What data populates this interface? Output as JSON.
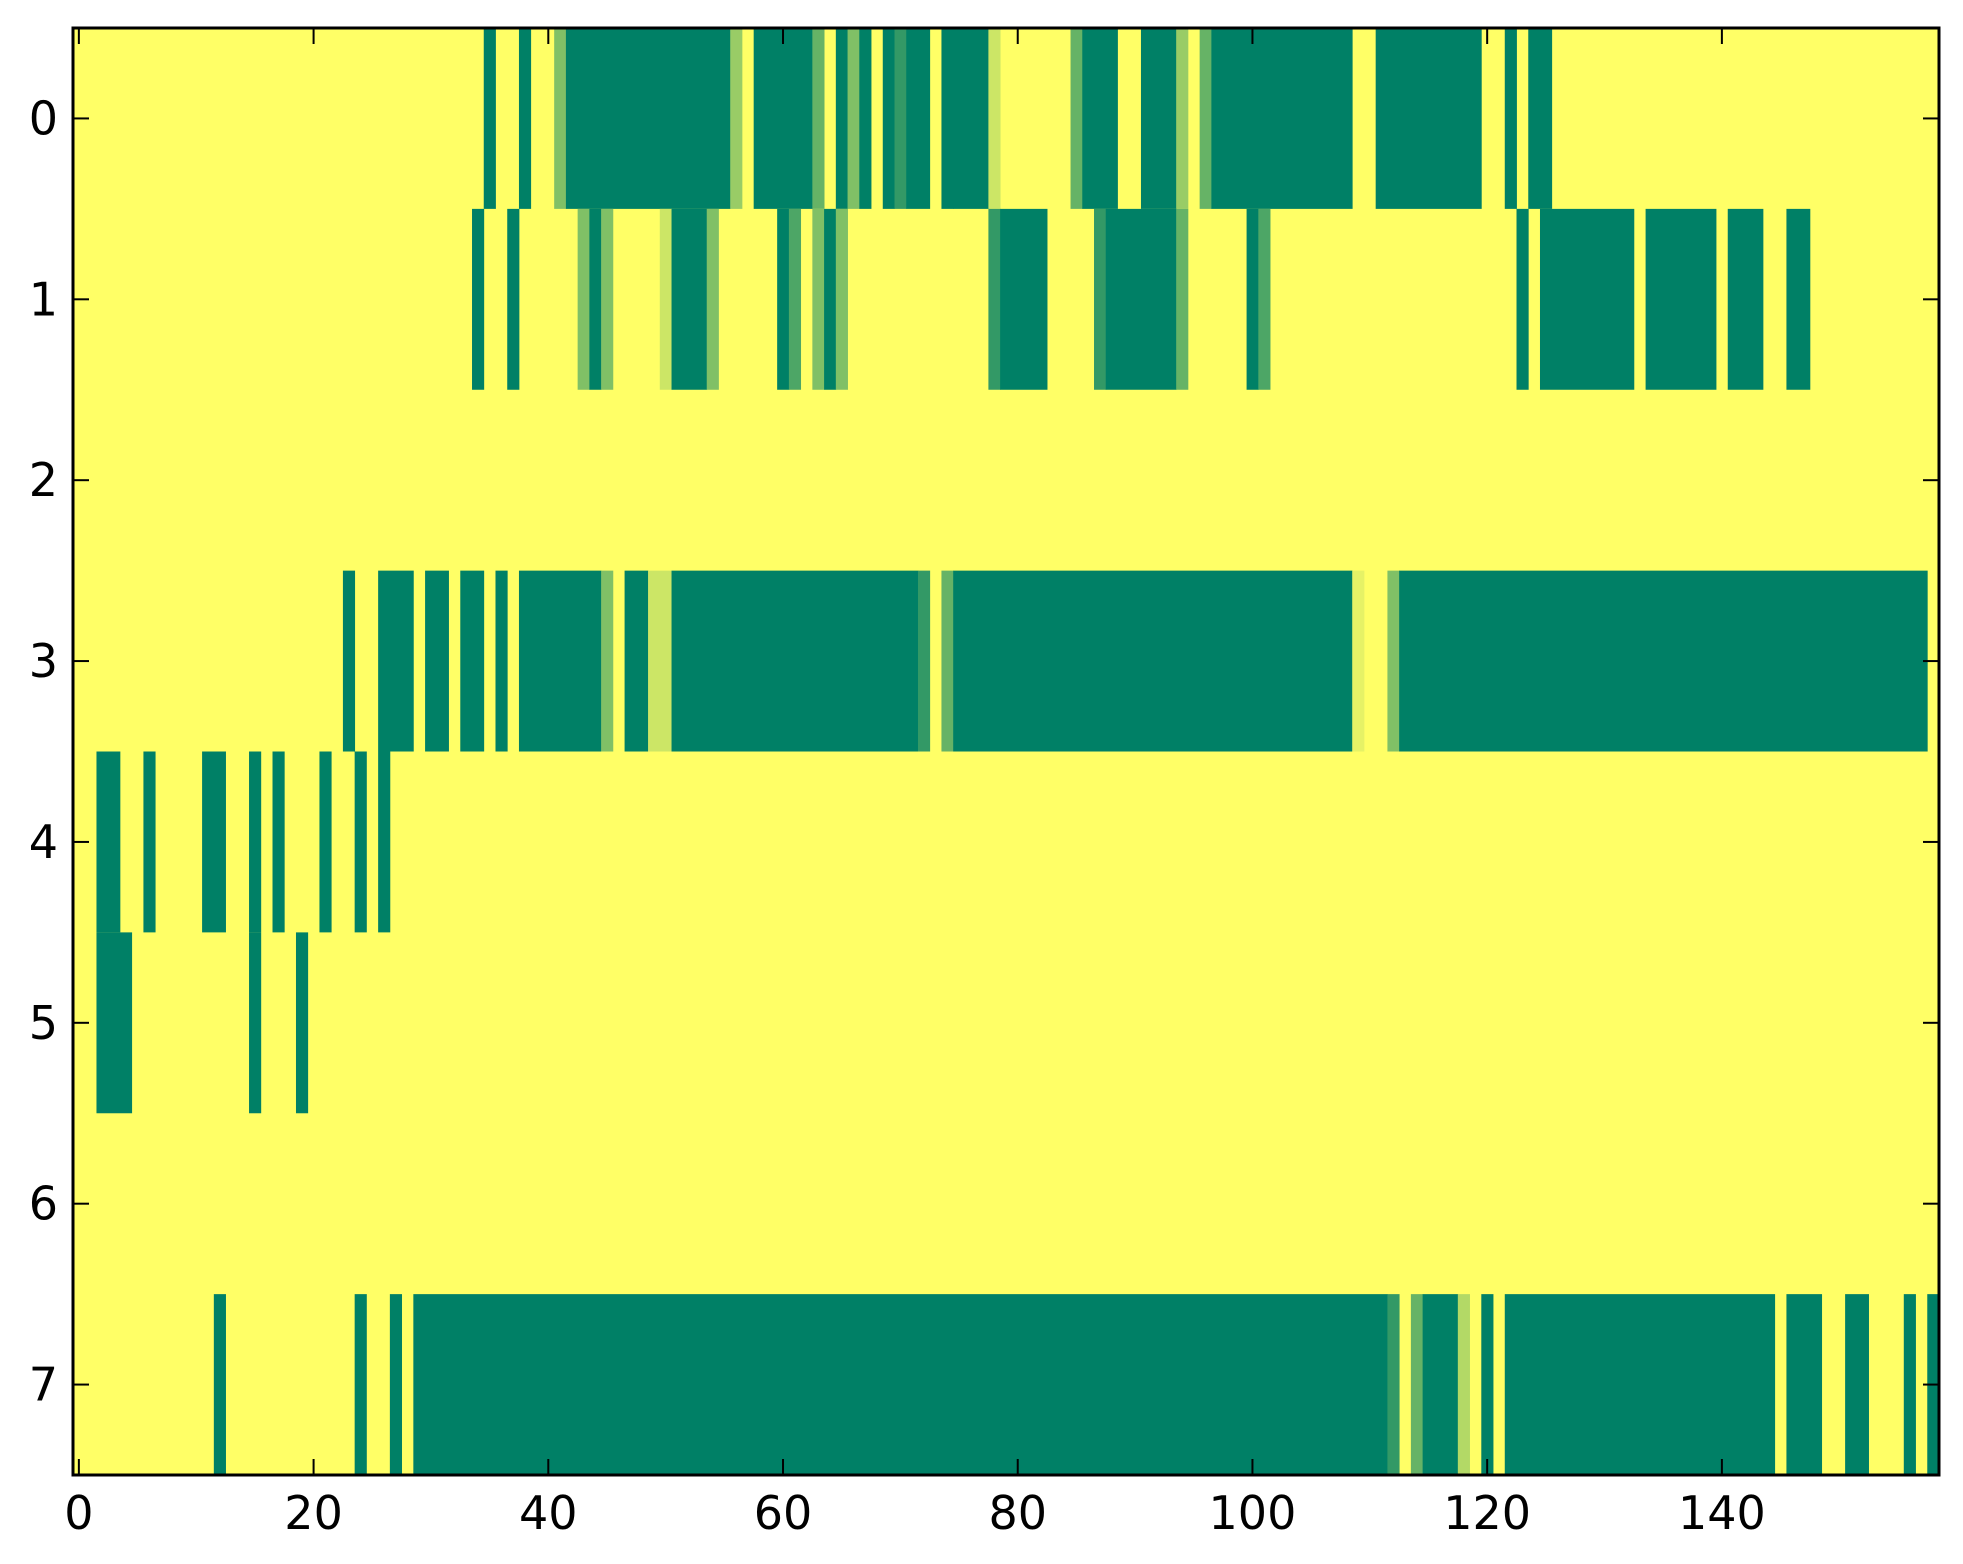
{
  "chart_data": {
    "type": "heatmap",
    "title": "",
    "xlabel": "",
    "ylabel": "",
    "xlim": [
      -0.5,
      158.5
    ],
    "ylim": [
      7.5,
      -0.5
    ],
    "x_ticks": [
      0,
      20,
      40,
      60,
      80,
      100,
      120,
      140
    ],
    "x_tick_labels": [
      "0",
      "20",
      "40",
      "60",
      "80",
      "100",
      "120",
      "140"
    ],
    "y_ticks": [
      0,
      1,
      2,
      3,
      4,
      5,
      6,
      7
    ],
    "y_tick_labels": [
      "0",
      "1",
      "2",
      "3",
      "4",
      "5",
      "6",
      "7"
    ],
    "n_cols": 159,
    "n_rows": 8,
    "value_range": [
      0,
      1
    ],
    "colormap": "summer_r",
    "default_value": 0,
    "grid": false,
    "colors": {
      "low": "#ffff66",
      "high": "#008066",
      "axes": "#000000"
    },
    "rows": [
      {
        "row": 0,
        "segments": [
          {
            "x0": 34.5,
            "x1": 35.5,
            "v": 1
          },
          {
            "x0": 37.5,
            "x1": 38.5,
            "v": 1
          },
          {
            "x0": 40.5,
            "x1": 41.5,
            "v": 0.5
          },
          {
            "x0": 41.5,
            "x1": 55.5,
            "v": 1
          },
          {
            "x0": 55.5,
            "x1": 56.5,
            "v": 0.4
          },
          {
            "x0": 57.5,
            "x1": 62.5,
            "v": 1
          },
          {
            "x0": 62.5,
            "x1": 63.5,
            "v": 0.6
          },
          {
            "x0": 64.5,
            "x1": 65.5,
            "v": 1
          },
          {
            "x0": 65.5,
            "x1": 66.5,
            "v": 0.5
          },
          {
            "x0": 66.5,
            "x1": 67.5,
            "v": 1
          },
          {
            "x0": 68.5,
            "x1": 69.5,
            "v": 1
          },
          {
            "x0": 69.5,
            "x1": 70.5,
            "v": 0.8
          },
          {
            "x0": 70.5,
            "x1": 72.5,
            "v": 1
          },
          {
            "x0": 73.5,
            "x1": 74.5,
            "v": 1
          },
          {
            "x0": 74.5,
            "x1": 77.5,
            "v": 1
          },
          {
            "x0": 77.5,
            "x1": 78.5,
            "v": 0.2
          },
          {
            "x0": 84.5,
            "x1": 85.5,
            "v": 0.6
          },
          {
            "x0": 85.5,
            "x1": 88.5,
            "v": 1
          },
          {
            "x0": 90.5,
            "x1": 93.5,
            "v": 1
          },
          {
            "x0": 93.5,
            "x1": 94.5,
            "v": 0.4
          },
          {
            "x0": 95.5,
            "x1": 96.5,
            "v": 0.6
          },
          {
            "x0": 96.5,
            "x1": 108.5,
            "v": 1
          },
          {
            "x0": 110.5,
            "x1": 119.5,
            "v": 1
          },
          {
            "x0": 121.5,
            "x1": 122.5,
            "v": 1
          },
          {
            "x0": 123.5,
            "x1": 125.5,
            "v": 1
          }
        ]
      },
      {
        "row": 1,
        "segments": [
          {
            "x0": 33.5,
            "x1": 34.5,
            "v": 1
          },
          {
            "x0": 36.5,
            "x1": 37.5,
            "v": 1
          },
          {
            "x0": 42.5,
            "x1": 43.5,
            "v": 0.5
          },
          {
            "x0": 43.5,
            "x1": 44.5,
            "v": 1
          },
          {
            "x0": 44.5,
            "x1": 45.5,
            "v": 0.5
          },
          {
            "x0": 49.5,
            "x1": 50.5,
            "v": 0.2
          },
          {
            "x0": 50.5,
            "x1": 53.5,
            "v": 1
          },
          {
            "x0": 53.5,
            "x1": 54.5,
            "v": 0.5
          },
          {
            "x0": 59.5,
            "x1": 60.5,
            "v": 1
          },
          {
            "x0": 60.5,
            "x1": 61.5,
            "v": 0.7
          },
          {
            "x0": 62.5,
            "x1": 63.5,
            "v": 0.5
          },
          {
            "x0": 63.5,
            "x1": 64.5,
            "v": 1
          },
          {
            "x0": 64.5,
            "x1": 65.5,
            "v": 0.5
          },
          {
            "x0": 77.5,
            "x1": 78.5,
            "v": 0.8
          },
          {
            "x0": 78.5,
            "x1": 82.5,
            "v": 1
          },
          {
            "x0": 86.5,
            "x1": 87.5,
            "v": 0.8
          },
          {
            "x0": 87.5,
            "x1": 93.5,
            "v": 1
          },
          {
            "x0": 93.5,
            "x1": 94.5,
            "v": 0.6
          },
          {
            "x0": 99.5,
            "x1": 100.5,
            "v": 1
          },
          {
            "x0": 100.5,
            "x1": 101.5,
            "v": 0.7
          },
          {
            "x0": 122.5,
            "x1": 123.5,
            "v": 1
          },
          {
            "x0": 124.5,
            "x1": 132.5,
            "v": 1
          },
          {
            "x0": 133.5,
            "x1": 139.5,
            "v": 1
          },
          {
            "x0": 140.5,
            "x1": 143.5,
            "v": 1
          },
          {
            "x0": 145.5,
            "x1": 147.5,
            "v": 1
          }
        ]
      },
      {
        "row": 2,
        "segments": []
      },
      {
        "row": 3,
        "segments": [
          {
            "x0": 22.5,
            "x1": 23.5,
            "v": 1
          },
          {
            "x0": 25.5,
            "x1": 28.5,
            "v": 1
          },
          {
            "x0": 29.5,
            "x1": 31.5,
            "v": 1
          },
          {
            "x0": 32.5,
            "x1": 34.5,
            "v": 1
          },
          {
            "x0": 35.5,
            "x1": 36.5,
            "v": 1
          },
          {
            "x0": 37.5,
            "x1": 44.5,
            "v": 1
          },
          {
            "x0": 44.5,
            "x1": 45.5,
            "v": 0.5
          },
          {
            "x0": 46.5,
            "x1": 48.5,
            "v": 1
          },
          {
            "x0": 48.5,
            "x1": 50.5,
            "v": 0.2
          },
          {
            "x0": 50.5,
            "x1": 71.5,
            "v": 1
          },
          {
            "x0": 71.5,
            "x1": 72.5,
            "v": 0.8
          },
          {
            "x0": 73.5,
            "x1": 74.5,
            "v": 0.6
          },
          {
            "x0": 74.5,
            "x1": 108.5,
            "v": 1
          },
          {
            "x0": 108.5,
            "x1": 109.5,
            "v": 0.1
          },
          {
            "x0": 111.5,
            "x1": 112.5,
            "v": 0.5
          },
          {
            "x0": 112.5,
            "x1": 157.5,
            "v": 1
          }
        ]
      },
      {
        "row": 4,
        "segments": [
          {
            "x0": 1.5,
            "x1": 3.5,
            "v": 1
          },
          {
            "x0": 5.5,
            "x1": 6.5,
            "v": 1
          },
          {
            "x0": 10.5,
            "x1": 12.5,
            "v": 1
          },
          {
            "x0": 14.5,
            "x1": 15.5,
            "v": 1
          },
          {
            "x0": 16.5,
            "x1": 17.5,
            "v": 1
          },
          {
            "x0": 20.5,
            "x1": 21.5,
            "v": 1
          },
          {
            "x0": 23.5,
            "x1": 24.5,
            "v": 1
          },
          {
            "x0": 25.5,
            "x1": 26.5,
            "v": 1
          }
        ]
      },
      {
        "row": 5,
        "segments": [
          {
            "x0": 1.5,
            "x1": 4.5,
            "v": 1
          },
          {
            "x0": 14.5,
            "x1": 15.5,
            "v": 1
          },
          {
            "x0": 18.5,
            "x1": 19.5,
            "v": 1
          }
        ]
      },
      {
        "row": 6,
        "segments": []
      },
      {
        "row": 7,
        "segments": [
          {
            "x0": 11.5,
            "x1": 12.5,
            "v": 1
          },
          {
            "x0": 23.5,
            "x1": 24.5,
            "v": 1
          },
          {
            "x0": 26.5,
            "x1": 27.5,
            "v": 1
          },
          {
            "x0": 28.5,
            "x1": 111.5,
            "v": 1
          },
          {
            "x0": 111.5,
            "x1": 112.5,
            "v": 0.8
          },
          {
            "x0": 113.5,
            "x1": 114.5,
            "v": 0.6
          },
          {
            "x0": 114.5,
            "x1": 117.5,
            "v": 1
          },
          {
            "x0": 117.5,
            "x1": 118.5,
            "v": 0.3
          },
          {
            "x0": 119.5,
            "x1": 120.5,
            "v": 1
          },
          {
            "x0": 121.5,
            "x1": 144.5,
            "v": 1
          },
          {
            "x0": 145.5,
            "x1": 148.5,
            "v": 1
          },
          {
            "x0": 150.5,
            "x1": 152.5,
            "v": 1
          },
          {
            "x0": 155.5,
            "x1": 156.5,
            "v": 1
          },
          {
            "x0": 157.5,
            "x1": 158.5,
            "v": 1
          }
        ]
      }
    ]
  }
}
